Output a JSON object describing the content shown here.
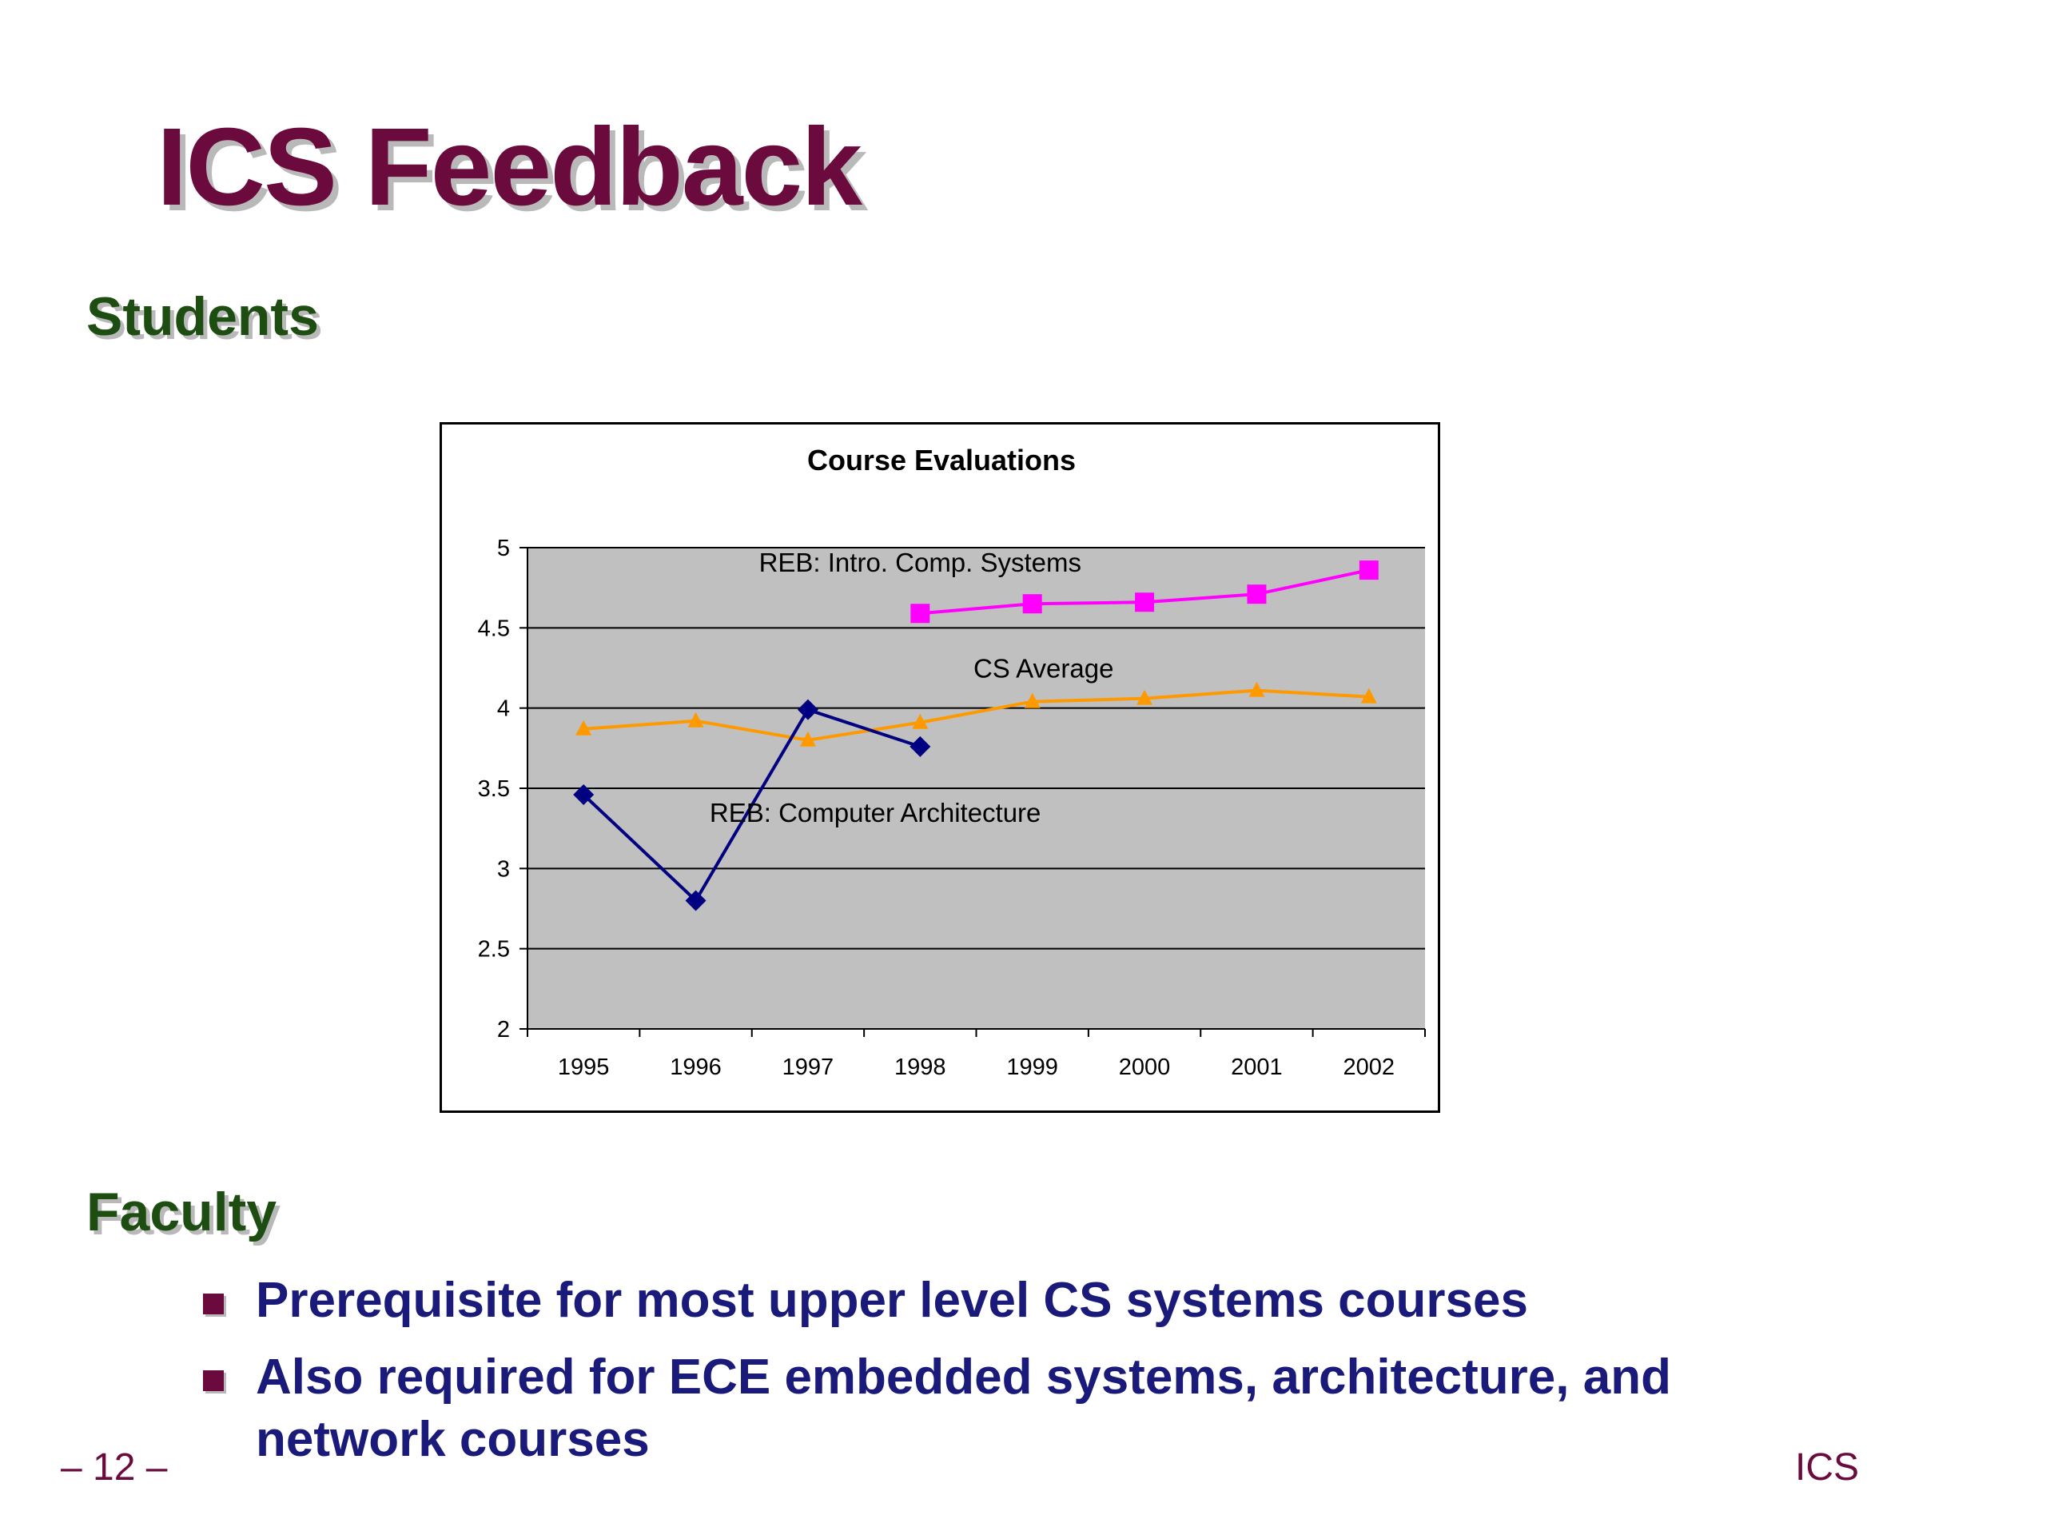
{
  "slide": {
    "title": "ICS Feedback",
    "section_students": "Students",
    "section_faculty": "Faculty",
    "bullets": [
      "Prerequisite for most upper level CS systems courses",
      "Also required for ECE embedded systems, architecture, and network courses"
    ],
    "page_number": "– 12 –",
    "footer_label": "ICS"
  },
  "chart_data": {
    "type": "line",
    "title": "Course Evaluations",
    "categories": [
      "1995",
      "1996",
      "1997",
      "1998",
      "1999",
      "2000",
      "2001",
      "2002"
    ],
    "ylim": [
      2,
      5
    ],
    "yticks": [
      "2",
      "2.5",
      "3",
      "3.5",
      "4",
      "4.5",
      "5"
    ],
    "grid": true,
    "series": [
      {
        "name": "REB: Intro. Comp. Systems",
        "values": [
          null,
          null,
          null,
          4.59,
          4.65,
          4.66,
          4.71,
          4.86
        ],
        "color": "#ff00ff",
        "marker": "square"
      },
      {
        "name": "CS Average",
        "values": [
          3.87,
          3.92,
          3.8,
          3.91,
          4.04,
          4.06,
          4.11,
          4.07
        ],
        "color": "#ff9900",
        "marker": "triangle"
      },
      {
        "name": "REB: Computer Architecture",
        "values": [
          3.46,
          2.8,
          3.99,
          3.76,
          null,
          null,
          null,
          null
        ],
        "color": "#000080",
        "marker": "diamond"
      }
    ],
    "colors": {
      "plot_background": "#c0c0c0",
      "gridline": "#000000"
    }
  }
}
